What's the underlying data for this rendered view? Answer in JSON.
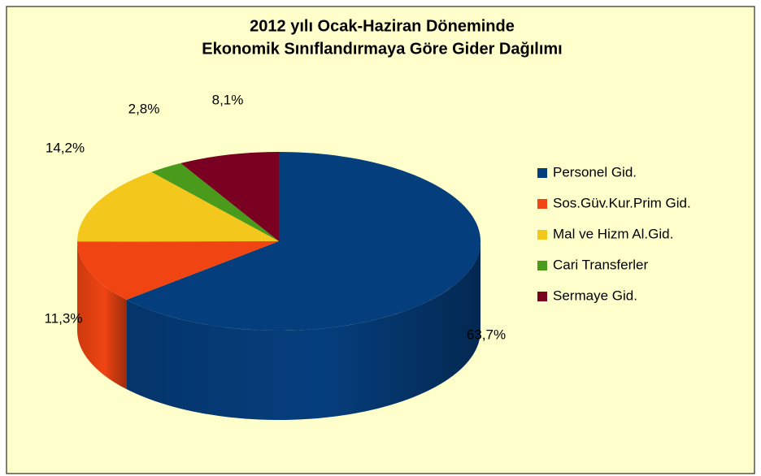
{
  "chart_data": {
    "type": "pie3d",
    "title": [
      "2012 yılı Ocak-Haziran Döneminde",
      "Ekonomik Sınıflandırmaya Göre Gider Dağılımı"
    ],
    "categories": [
      "Personel Gid.",
      "Sos.Güv.Kur.Prim Gid.",
      "Mal ve Hizm Al.Gid.",
      "Cari Transferler",
      "Sermaye Gid."
    ],
    "values": [
      63.7,
      11.3,
      14.2,
      2.8,
      8.1
    ],
    "value_labels": [
      "63,7%",
      "11,3%",
      "14,2%",
      "2,8%",
      "8,1%"
    ],
    "colors": [
      "#053e7d",
      "#f04412",
      "#f3c71c",
      "#4a9a1c",
      "#7a0022"
    ],
    "legend": "right"
  }
}
